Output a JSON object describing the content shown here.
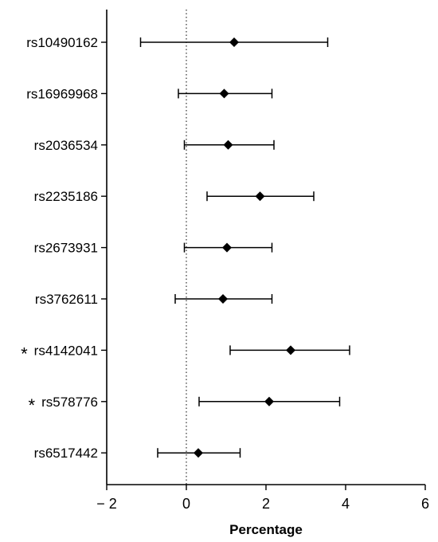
{
  "chart_data": {
    "type": "scatter",
    "subtype": "forest-plot",
    "xlabel": "Percentage",
    "xlim": [
      -2,
      6
    ],
    "xticks": [
      -2,
      0,
      2,
      4,
      6
    ],
    "xtick_labels": [
      "− 2",
      "0",
      "2",
      "4",
      "6"
    ],
    "reference_line": {
      "x": 0,
      "style": "dotted"
    },
    "grid": false,
    "categories": [
      "rs10490162",
      "rs16969968",
      "rs2036534",
      "rs2235186",
      "rs2673931",
      "rs3762611",
      "rs4142041",
      "rs578776",
      "rs6517442"
    ],
    "estimate": [
      1.2,
      0.95,
      1.05,
      1.85,
      1.02,
      0.92,
      2.62,
      2.08,
      0.3
    ],
    "ci_lower": [
      -1.15,
      -0.2,
      -0.05,
      0.52,
      -0.05,
      -0.28,
      1.1,
      0.32,
      -0.72
    ],
    "ci_upper": [
      3.55,
      2.15,
      2.2,
      3.2,
      2.15,
      2.15,
      4.1,
      3.85,
      1.35
    ],
    "significant": [
      false,
      false,
      false,
      false,
      false,
      false,
      true,
      true,
      false
    ],
    "significance_marker": "*"
  }
}
